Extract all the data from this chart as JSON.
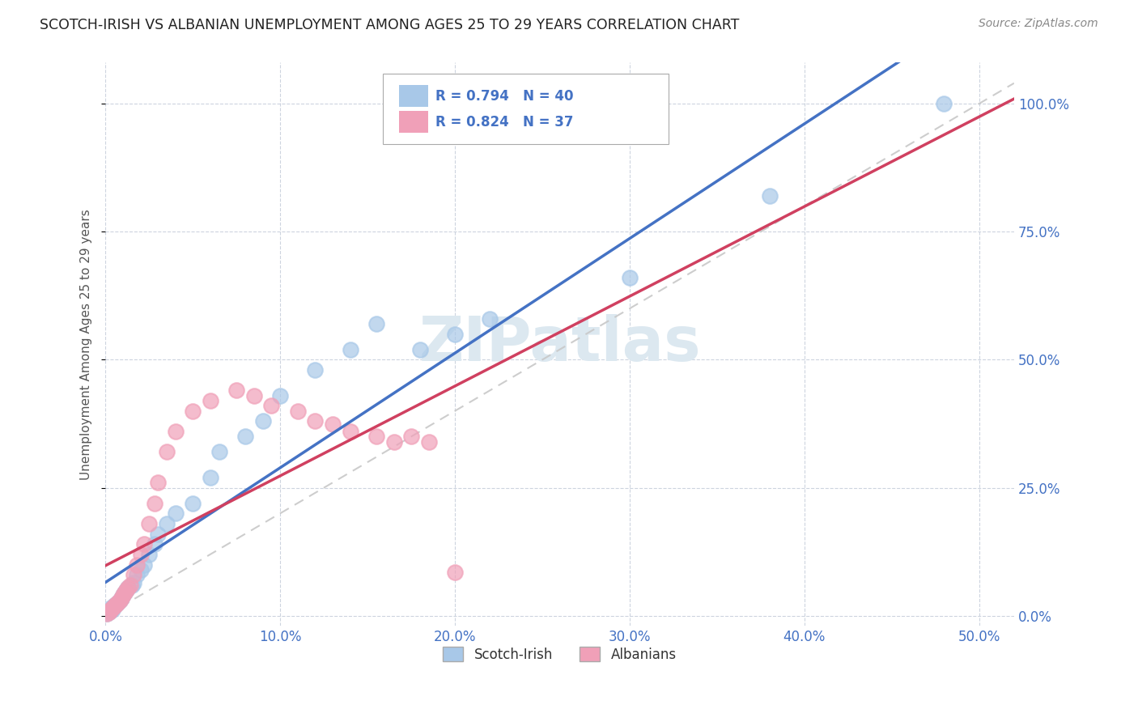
{
  "title": "SCOTCH-IRISH VS ALBANIAN UNEMPLOYMENT AMONG AGES 25 TO 29 YEARS CORRELATION CHART",
  "source": "Source: ZipAtlas.com",
  "xlabel_ticks": [
    "0.0%",
    "10.0%",
    "20.0%",
    "30.0%",
    "40.0%",
    "50.0%"
  ],
  "xlabel_values": [
    0.0,
    0.1,
    0.2,
    0.3,
    0.4,
    0.5
  ],
  "ylabel_ticks": [
    "0.0%",
    "25.0%",
    "50.0%",
    "75.0%",
    "100.0%"
  ],
  "ylabel_values": [
    0.0,
    0.25,
    0.5,
    0.75,
    1.0
  ],
  "ylabel_label": "Unemployment Among Ages 25 to 29 years",
  "xlim": [
    0.0,
    0.52
  ],
  "ylim": [
    -0.02,
    1.08
  ],
  "scotch_irish_R": "0.794",
  "scotch_irish_N": "40",
  "albanian_R": "0.824",
  "albanian_N": "37",
  "scotch_irish_color": "#a8c8e8",
  "albanian_color": "#f0a0b8",
  "scotch_irish_line_color": "#4472c4",
  "albanian_line_color": "#d04060",
  "diagonal_color": "#c8c8c8",
  "watermark_color": "#dce8f0",
  "scotch_irish_x": [
    0.001,
    0.002,
    0.003,
    0.003,
    0.004,
    0.005,
    0.005,
    0.006,
    0.007,
    0.008,
    0.009,
    0.01,
    0.011,
    0.012,
    0.013,
    0.015,
    0.016,
    0.018,
    0.02,
    0.022,
    0.025,
    0.028,
    0.03,
    0.035,
    0.04,
    0.05,
    0.06,
    0.065,
    0.08,
    0.09,
    0.1,
    0.12,
    0.14,
    0.155,
    0.18,
    0.2,
    0.22,
    0.3,
    0.38,
    0.48
  ],
  "scotch_irish_y": [
    0.005,
    0.008,
    0.01,
    0.015,
    0.012,
    0.018,
    0.02,
    0.022,
    0.025,
    0.03,
    0.035,
    0.04,
    0.045,
    0.05,
    0.055,
    0.06,
    0.065,
    0.08,
    0.09,
    0.1,
    0.12,
    0.14,
    0.16,
    0.18,
    0.2,
    0.22,
    0.27,
    0.32,
    0.35,
    0.38,
    0.43,
    0.48,
    0.52,
    0.57,
    0.52,
    0.55,
    0.58,
    0.66,
    0.82,
    1.0
  ],
  "albanian_x": [
    0.001,
    0.002,
    0.003,
    0.004,
    0.005,
    0.006,
    0.007,
    0.008,
    0.009,
    0.01,
    0.011,
    0.012,
    0.013,
    0.014,
    0.016,
    0.018,
    0.02,
    0.022,
    0.025,
    0.028,
    0.03,
    0.035,
    0.04,
    0.05,
    0.06,
    0.075,
    0.085,
    0.095,
    0.11,
    0.12,
    0.13,
    0.14,
    0.155,
    0.165,
    0.175,
    0.185,
    0.2
  ],
  "albanian_y": [
    0.005,
    0.008,
    0.012,
    0.015,
    0.018,
    0.022,
    0.025,
    0.03,
    0.035,
    0.04,
    0.045,
    0.05,
    0.055,
    0.06,
    0.08,
    0.1,
    0.12,
    0.14,
    0.18,
    0.22,
    0.26,
    0.32,
    0.36,
    0.4,
    0.42,
    0.44,
    0.43,
    0.41,
    0.4,
    0.38,
    0.375,
    0.36,
    0.35,
    0.34,
    0.35,
    0.34,
    0.085
  ]
}
